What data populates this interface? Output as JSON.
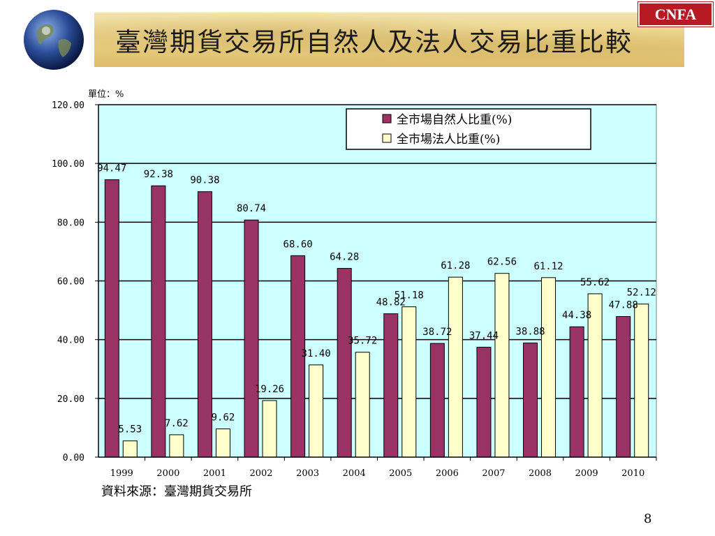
{
  "slide": {
    "title": "臺灣期貨交易所自然人及法人交易比重比較",
    "logo_text": "CNFA",
    "source": "資料來源：臺灣期貨交易所",
    "page_number": "8"
  },
  "colors": {
    "plot_background": "#ccffff",
    "series_natural": "#993366",
    "series_institutional": "#ffffcc",
    "logo": "#b81a23"
  },
  "chart_data": {
    "type": "bar",
    "unit_label": "單位：%",
    "categories": [
      "1999",
      "2000",
      "2001",
      "2002",
      "2003",
      "2004",
      "2005",
      "2006",
      "2007",
      "2008",
      "2009",
      "2010"
    ],
    "series": [
      {
        "name": "全市場自然人比重(%)",
        "values": [
          94.47,
          92.38,
          90.38,
          80.74,
          68.6,
          64.28,
          48.82,
          38.72,
          37.44,
          38.88,
          44.38,
          47.88
        ],
        "labels": [
          "94.47",
          "92.38",
          "90.38",
          "80.74",
          "68.60",
          "64.28",
          "48.82",
          "38.72",
          "37.44",
          "38.88",
          "44.38",
          "47.88"
        ]
      },
      {
        "name": "全市場法人比重(%)",
        "values": [
          5.53,
          7.62,
          9.62,
          19.26,
          31.4,
          35.72,
          51.18,
          61.28,
          62.56,
          61.12,
          55.62,
          52.12
        ],
        "labels": [
          "5.53",
          "7.62",
          "9.62",
          "19.26",
          "31.40",
          "35.72",
          "51.18",
          "61.28",
          "62.56",
          "61.12",
          "55.62",
          "52.12"
        ]
      }
    ],
    "yticks": [
      "0.00",
      "20.00",
      "40.00",
      "60.00",
      "80.00",
      "100.00",
      "120.00"
    ],
    "ylim": [
      0,
      120
    ],
    "grid": true,
    "legend_position": "top-right"
  }
}
